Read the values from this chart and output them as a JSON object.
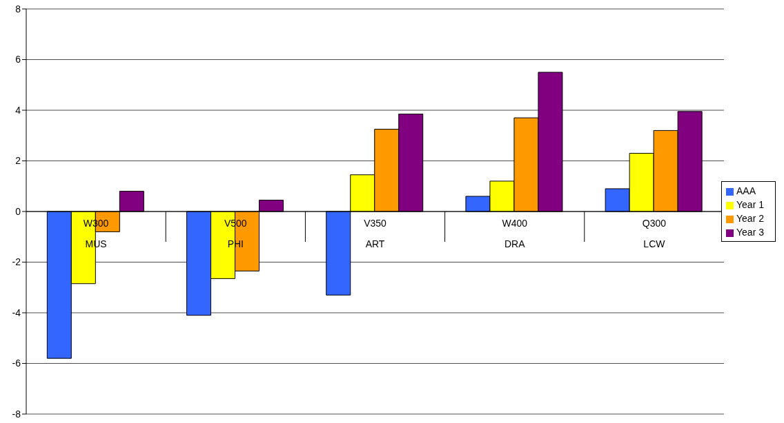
{
  "chart_data": {
    "type": "bar",
    "categories": [
      "W300\nMUS",
      "V500\nPHI",
      "V350\nART",
      "W400\nDRA",
      "Q300\nLCW"
    ],
    "series": [
      {
        "name": "AAA",
        "color": "#3366ff",
        "values": [
          -5.8,
          -4.1,
          -3.3,
          0.6,
          0.9
        ]
      },
      {
        "name": "Year 1",
        "color": "#ffff00",
        "values": [
          -2.85,
          -2.65,
          1.45,
          1.2,
          2.3
        ]
      },
      {
        "name": "Year 2",
        "color": "#ff9900",
        "values": [
          -0.8,
          -2.35,
          3.25,
          3.7,
          3.2
        ]
      },
      {
        "name": "Year 3",
        "color": "#800080",
        "values": [
          0.8,
          0.45,
          3.85,
          5.5,
          3.95
        ]
      }
    ],
    "ylim": [
      -8,
      8
    ],
    "yticks": [
      -8,
      -6,
      -4,
      -2,
      0,
      2,
      4,
      6,
      8
    ],
    "grid": "y",
    "legend": "right"
  }
}
